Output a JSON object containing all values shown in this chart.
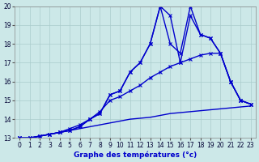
{
  "xlabel": "Graphe des températures (°c)",
  "background_color": "#cce8e8",
  "line_color": "#0000cc",
  "grid_color": "#aacccc",
  "xlim": [
    -0.5,
    23.5
  ],
  "ylim": [
    13,
    20
  ],
  "xticks": [
    0,
    1,
    2,
    3,
    4,
    5,
    6,
    7,
    8,
    9,
    10,
    11,
    12,
    13,
    14,
    15,
    16,
    17,
    18,
    19,
    20,
    21,
    22,
    23
  ],
  "yticks": [
    13,
    14,
    15,
    16,
    17,
    18,
    19,
    20
  ],
  "series": [
    {
      "x": [
        0,
        1,
        2,
        3,
        4,
        5,
        6,
        7,
        8,
        9,
        10,
        11,
        12,
        13,
        14,
        15,
        16,
        17,
        18,
        19,
        20,
        21,
        22,
        23
      ],
      "y": [
        13.0,
        13.0,
        13.1,
        13.2,
        13.3,
        13.4,
        13.6,
        14.0,
        14.3,
        15.3,
        15.5,
        16.5,
        17.0,
        18.0,
        20.0,
        18.0,
        17.5,
        20.0,
        18.5,
        18.3,
        17.5,
        16.0,
        15.0,
        14.8
      ],
      "marker": "x",
      "markersize": 3,
      "linewidth": 1.0
    },
    {
      "x": [
        0,
        1,
        2,
        3,
        4,
        5,
        6,
        7,
        8,
        9,
        10,
        11,
        12,
        13,
        14,
        15,
        16,
        17,
        18,
        19,
        20,
        21,
        22,
        23
      ],
      "y": [
        13.0,
        13.0,
        13.1,
        13.2,
        13.3,
        13.4,
        13.6,
        14.0,
        14.3,
        15.3,
        15.5,
        16.5,
        17.0,
        18.0,
        20.0,
        19.5,
        17.0,
        19.5,
        18.5,
        18.3,
        17.5,
        16.0,
        15.0,
        14.8
      ],
      "marker": "x",
      "markersize": 3,
      "linewidth": 1.0
    },
    {
      "x": [
        0,
        1,
        2,
        3,
        4,
        5,
        6,
        7,
        8,
        9,
        10,
        11,
        12,
        13,
        14,
        15,
        16,
        17,
        18,
        19,
        20,
        21,
        22,
        23
      ],
      "y": [
        13.0,
        13.0,
        13.1,
        13.2,
        13.3,
        13.5,
        13.7,
        14.0,
        14.4,
        15.0,
        15.2,
        15.5,
        15.8,
        16.2,
        16.5,
        16.8,
        17.0,
        17.2,
        17.4,
        17.5,
        17.5,
        16.0,
        15.0,
        14.8
      ],
      "marker": "x",
      "markersize": 3,
      "linewidth": 1.0
    },
    {
      "x": [
        0,
        1,
        2,
        3,
        4,
        5,
        6,
        7,
        8,
        9,
        10,
        11,
        12,
        13,
        14,
        15,
        16,
        17,
        18,
        19,
        20,
        21,
        22,
        23
      ],
      "y": [
        13.0,
        13.0,
        13.1,
        13.2,
        13.3,
        13.4,
        13.5,
        13.6,
        13.7,
        13.8,
        13.9,
        14.0,
        14.05,
        14.1,
        14.2,
        14.3,
        14.35,
        14.4,
        14.45,
        14.5,
        14.55,
        14.6,
        14.65,
        14.7
      ],
      "marker": null,
      "markersize": 0,
      "linewidth": 1.0
    }
  ],
  "tick_fontsize": 5.5,
  "label_fontsize": 6.5,
  "label_fontweight": "bold"
}
